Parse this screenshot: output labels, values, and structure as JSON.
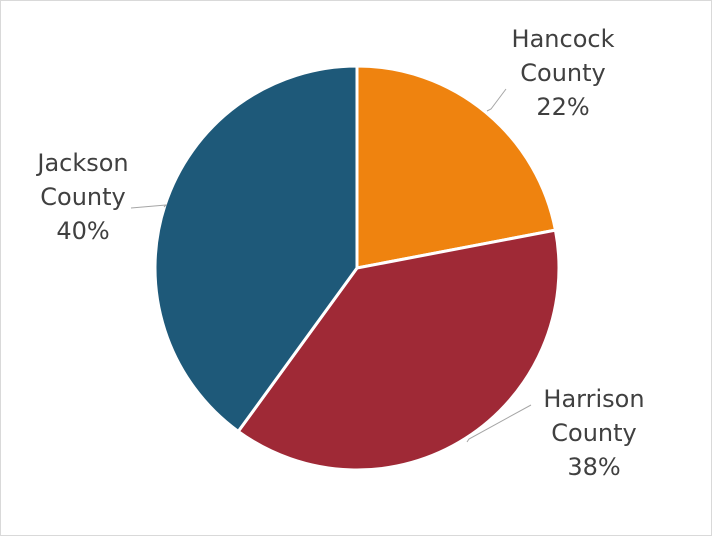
{
  "chart_data": {
    "type": "pie",
    "title": "",
    "start_angle_deg": 0,
    "direction": "clockwise",
    "legend": "none",
    "slices": [
      {
        "label_line1": "Hancock",
        "label_line2": "County",
        "name": "Hancock County",
        "value": 22,
        "display": "22%",
        "color": "#ef830f"
      },
      {
        "label_line1": "Harrison",
        "label_line2": "County",
        "name": "Harrison County",
        "value": 38,
        "display": "38%",
        "color": "#9f2936"
      },
      {
        "label_line1": "Jackson",
        "label_line2": "County",
        "name": "Jackson County",
        "value": 40,
        "display": "40%",
        "color": "#1e5979"
      }
    ]
  }
}
